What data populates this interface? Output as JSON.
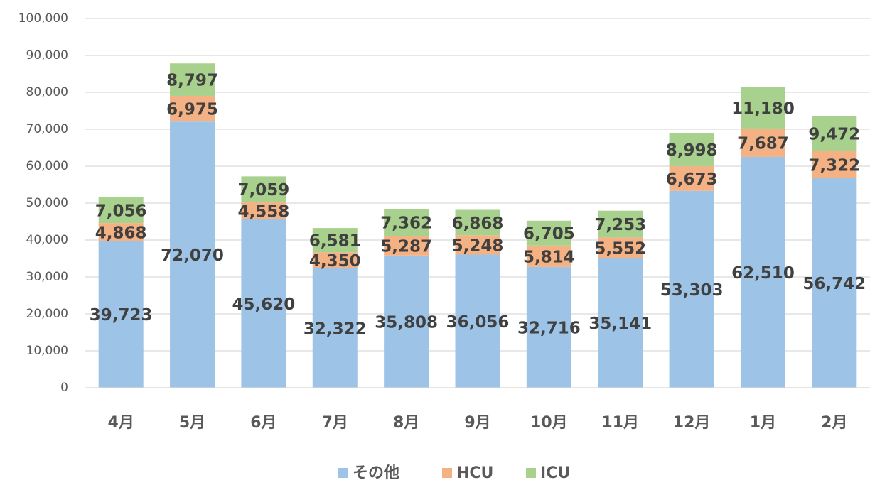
{
  "chart_data": {
    "type": "bar",
    "stacked": true,
    "categories": [
      "4月",
      "5月",
      "6月",
      "7月",
      "8月",
      "9月",
      "10月",
      "11月",
      "12月",
      "1月",
      "2月"
    ],
    "series": [
      {
        "name": "その他",
        "color": "#9dc3e6",
        "values": [
          39723,
          72070,
          45620,
          32322,
          35808,
          36056,
          32716,
          35141,
          53303,
          62510,
          56742
        ],
        "value_labels": [
          "39,723",
          "72,070",
          "45,620",
          "32,322",
          "35,808",
          "36,056",
          "32,716",
          "35,141",
          "53,303",
          "62,510",
          "56,742"
        ]
      },
      {
        "name": "HCU",
        "color": "#f4b183",
        "values": [
          4868,
          6975,
          4558,
          4350,
          5287,
          5248,
          5814,
          5552,
          6673,
          7687,
          7322
        ],
        "value_labels": [
          "4,868",
          "6,975",
          "4,558",
          "4,350",
          "5,287",
          "5,248",
          "5,814",
          "5,552",
          "6,673",
          "7,687",
          "7,322"
        ]
      },
      {
        "name": "ICU",
        "color": "#a9d18e",
        "values": [
          7056,
          8797,
          7059,
          6581,
          7362,
          6868,
          6705,
          7253,
          8998,
          11180,
          9472
        ],
        "value_labels": [
          "7,056",
          "8,797",
          "7,059",
          "6,581",
          "7,362",
          "6,868",
          "6,705",
          "7,253",
          "8,998",
          "11,180",
          "9,472"
        ]
      }
    ],
    "ylim": [
      0,
      100000
    ],
    "yticks": [
      0,
      {
        "value": 10000,
        "label": "10,000"
      },
      {
        "value": 20000,
        "label": "20,000"
      },
      {
        "value": 30000,
        "label": "30,000"
      },
      {
        "value": 40000,
        "label": "40,000"
      },
      {
        "value": 50000,
        "label": "50,000"
      },
      {
        "value": 60000,
        "label": "60,000"
      },
      {
        "value": 70000,
        "label": "70,000"
      },
      {
        "value": 80000,
        "label": "80,000"
      },
      {
        "value": 90000,
        "label": "90,000"
      },
      {
        "value": 100000,
        "label": "100,000"
      }
    ],
    "grid": true,
    "legend": "bottom"
  }
}
